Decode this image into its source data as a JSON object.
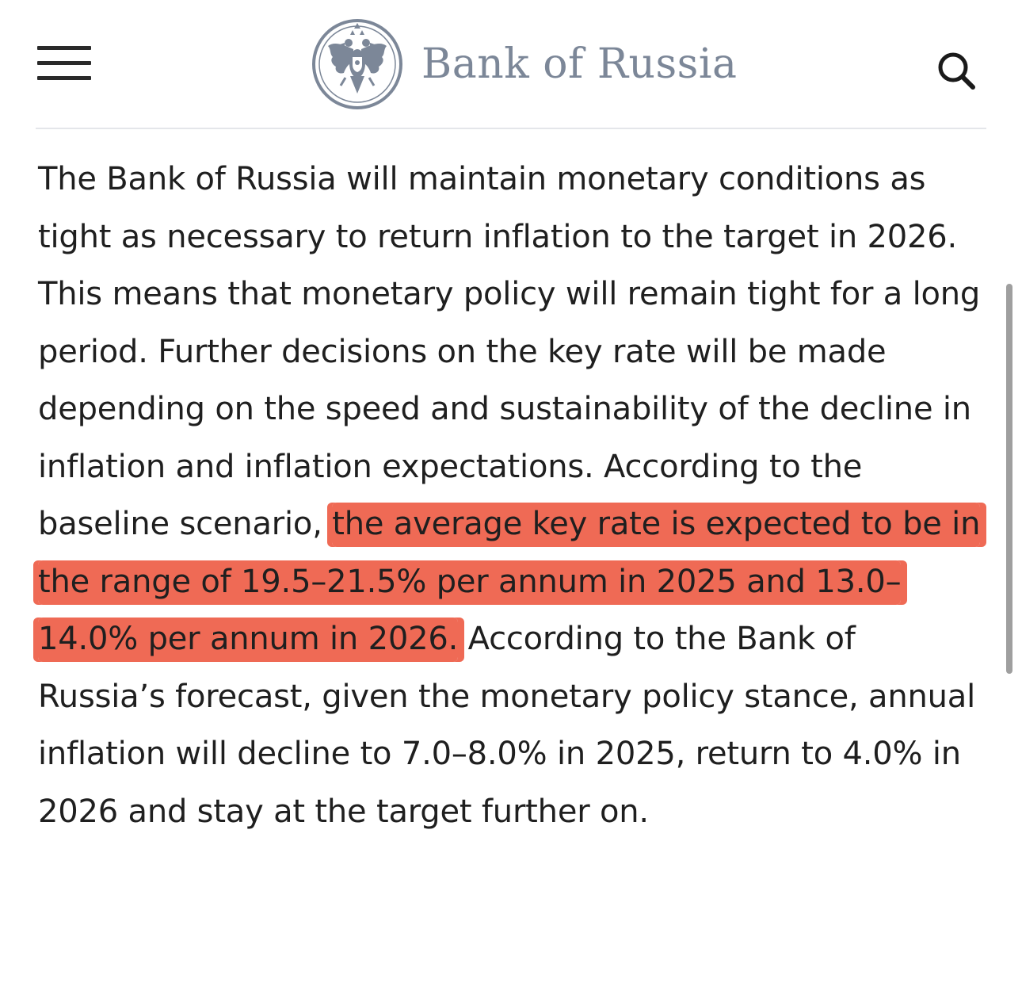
{
  "header": {
    "menu_icon": "hamburger-menu-icon",
    "logo_icon": "double-headed-eagle-emblem-icon",
    "bank_name": "Bank of Russia",
    "search_icon": "magnifier-search-icon",
    "brand_color": "#7c8798"
  },
  "article": {
    "text_before_highlight": "The Bank of Russia will maintain monetary conditions as tight as necessary to return inflation to the target in 2026. This means that monetary policy will remain tight for a long period. Further decisions on the key rate will be made depending on the speed and sustainability of the decline in inflation and inflation expectations. According to the baseline scenario, ",
    "highlighted_text": "the average key rate is expected to be in the range of 19.5–21.5% per annum in 2025 and 13.0–14.0% per annum in 2026.",
    "text_after_highlight": " According to the Bank of Russia’s forecast, given the monetary policy stance, annual inflation will decline to 7.0–8.0% in 2025, return to 4.0% in 2026 and stay at the target further on.",
    "highlight_color": "#ef6a55"
  }
}
